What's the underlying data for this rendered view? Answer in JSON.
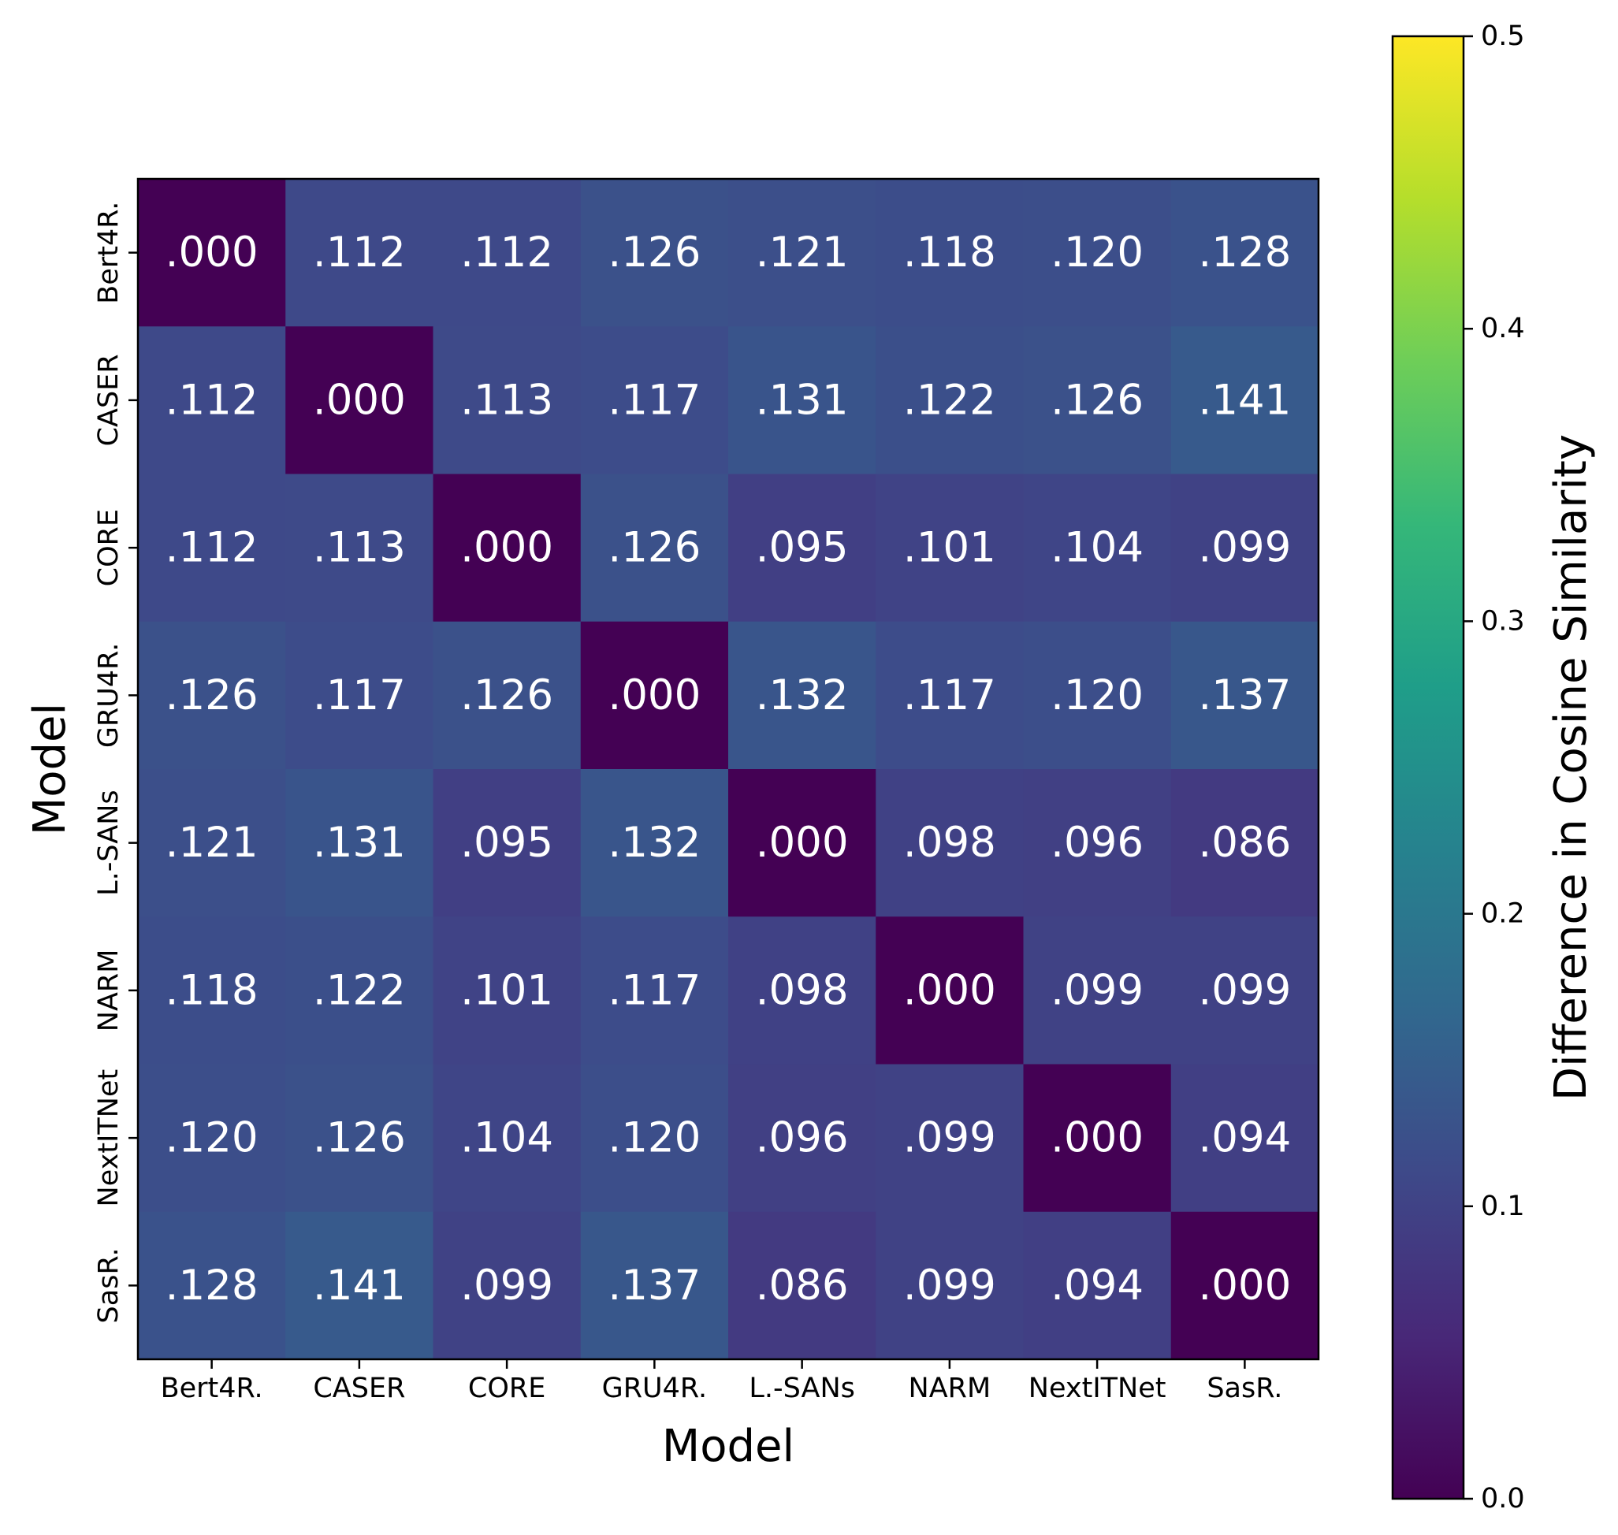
{
  "chart_data": {
    "type": "heatmap",
    "title": "",
    "xlabel": "Model",
    "ylabel": "Model",
    "categories_x": [
      "Bert4R.",
      "CASER",
      "CORE",
      "GRU4R.",
      "L.-SANs",
      "NARM",
      "NextITNet",
      "SasR."
    ],
    "categories_y": [
      "Bert4R.",
      "CASER",
      "CORE",
      "GRU4R.",
      "L.-SANs",
      "NARM",
      "NextITNet",
      "SasR."
    ],
    "values": [
      [
        0.0,
        0.112,
        0.112,
        0.126,
        0.121,
        0.118,
        0.12,
        0.128
      ],
      [
        0.112,
        0.0,
        0.113,
        0.117,
        0.131,
        0.122,
        0.126,
        0.141
      ],
      [
        0.112,
        0.113,
        0.0,
        0.126,
        0.095,
        0.101,
        0.104,
        0.099
      ],
      [
        0.126,
        0.117,
        0.126,
        0.0,
        0.132,
        0.117,
        0.12,
        0.137
      ],
      [
        0.121,
        0.131,
        0.095,
        0.132,
        0.0,
        0.098,
        0.096,
        0.086
      ],
      [
        0.118,
        0.122,
        0.101,
        0.117,
        0.098,
        0.0,
        0.099,
        0.099
      ],
      [
        0.12,
        0.126,
        0.104,
        0.12,
        0.096,
        0.099,
        0.0,
        0.094
      ],
      [
        0.128,
        0.141,
        0.099,
        0.137,
        0.086,
        0.099,
        0.094,
        0.0
      ]
    ],
    "cell_labels": [
      [
        ".000",
        ".112",
        ".112",
        ".126",
        ".121",
        ".118",
        ".120",
        ".128"
      ],
      [
        ".112",
        ".000",
        ".113",
        ".117",
        ".131",
        ".122",
        ".126",
        ".141"
      ],
      [
        ".112",
        ".113",
        ".000",
        ".126",
        ".095",
        ".101",
        ".104",
        ".099"
      ],
      [
        ".126",
        ".117",
        ".126",
        ".000",
        ".132",
        ".117",
        ".120",
        ".137"
      ],
      [
        ".121",
        ".131",
        ".095",
        ".132",
        ".000",
        ".098",
        ".096",
        ".086"
      ],
      [
        ".118",
        ".122",
        ".101",
        ".117",
        ".098",
        ".000",
        ".099",
        ".099"
      ],
      [
        ".120",
        ".126",
        ".104",
        ".120",
        ".096",
        ".099",
        ".000",
        ".094"
      ],
      [
        ".128",
        ".141",
        ".099",
        ".137",
        ".086",
        ".099",
        ".094",
        ".000"
      ]
    ],
    "colorbar": {
      "label": "Difference in Cosine Similarity",
      "range": [
        0.0,
        0.5
      ],
      "ticks": [
        0.0,
        0.1,
        0.2,
        0.3,
        0.4,
        0.5
      ],
      "tick_labels": [
        "0.0",
        "0.1",
        "0.2",
        "0.3",
        "0.4",
        "0.5"
      ]
    },
    "colormap": "viridis",
    "colormap_stops": [
      "#440154",
      "#482878",
      "#3e4989",
      "#31688e",
      "#26828e",
      "#1f9e89",
      "#35b779",
      "#6ece58",
      "#b5de2b",
      "#fde725"
    ],
    "annotation_color": "#ffffff",
    "grid": false
  }
}
